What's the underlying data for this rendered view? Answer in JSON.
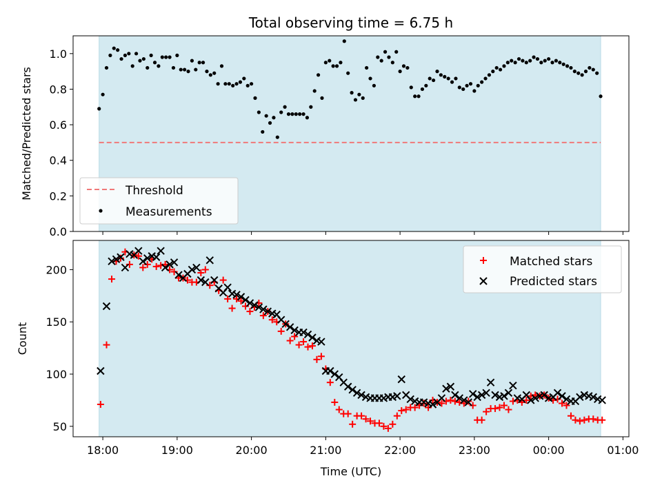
{
  "chart_data": [
    {
      "type": "scatter",
      "title": "Total observing time = 6.75 h",
      "ylabel": "Matched/Predicted stars",
      "ylim": [
        0,
        1.1
      ],
      "yticks": [
        "0.0",
        "0.2",
        "0.4",
        "0.6",
        "0.8",
        "1.0"
      ],
      "xlim_hours": [
        17.6,
        25.08
      ],
      "observing_window_hours": [
        17.95,
        24.7
      ],
      "shade_color": "#d4eaf1",
      "legend_position": "lower-left",
      "threshold": {
        "name": "Threshold",
        "value": 0.5,
        "color": "#f07878"
      },
      "series": [
        {
          "name": "Measurements",
          "color": "#000000",
          "x": [
            17.95,
            18.0,
            18.05,
            18.1,
            18.15,
            18.2,
            18.25,
            18.3,
            18.35,
            18.4,
            18.45,
            18.5,
            18.55,
            18.6,
            18.65,
            18.7,
            18.75,
            18.8,
            18.85,
            18.9,
            18.95,
            19.0,
            19.05,
            19.1,
            19.15,
            19.2,
            19.25,
            19.3,
            19.35,
            19.4,
            19.45,
            19.5,
            19.55,
            19.6,
            19.65,
            19.7,
            19.75,
            19.8,
            19.85,
            19.9,
            19.95,
            20.0,
            20.05,
            20.1,
            20.15,
            20.2,
            20.25,
            20.3,
            20.35,
            20.4,
            20.45,
            20.5,
            20.55,
            20.6,
            20.65,
            20.7,
            20.75,
            20.8,
            20.85,
            20.9,
            20.95,
            21.0,
            21.05,
            21.1,
            21.15,
            21.2,
            21.25,
            21.3,
            21.35,
            21.4,
            21.45,
            21.5,
            21.55,
            21.6,
            21.65,
            21.7,
            21.75,
            21.8,
            21.85,
            21.9,
            21.95,
            22.0,
            22.05,
            22.1,
            22.15,
            22.2,
            22.25,
            22.3,
            22.35,
            22.4,
            22.45,
            22.5,
            22.55,
            22.6,
            22.65,
            22.7,
            22.75,
            22.8,
            22.85,
            22.9,
            22.95,
            23.0,
            23.05,
            23.1,
            23.15,
            23.2,
            23.25,
            23.3,
            23.35,
            23.4,
            23.45,
            23.5,
            23.55,
            23.6,
            23.65,
            23.7,
            23.75,
            23.8,
            23.85,
            23.9,
            23.95,
            24.0,
            24.05,
            24.1,
            24.15,
            24.2,
            24.25,
            24.3,
            24.35,
            24.4,
            24.45,
            24.5,
            24.55,
            24.6,
            24.65,
            24.7
          ],
          "y": [
            0.69,
            0.77,
            0.92,
            0.99,
            1.03,
            1.02,
            0.97,
            0.99,
            1.0,
            0.93,
            1.0,
            0.96,
            0.97,
            0.92,
            0.99,
            0.95,
            0.93,
            0.98,
            0.98,
            0.98,
            0.92,
            0.99,
            0.91,
            0.91,
            0.9,
            0.96,
            0.91,
            0.95,
            0.95,
            0.9,
            0.88,
            0.89,
            0.83,
            0.93,
            0.83,
            0.83,
            0.82,
            0.83,
            0.84,
            0.86,
            0.82,
            0.83,
            0.75,
            0.67,
            0.56,
            0.65,
            0.61,
            0.64,
            0.53,
            0.67,
            0.7,
            0.66,
            0.66,
            0.66,
            0.66,
            0.66,
            0.64,
            0.7,
            0.79,
            0.88,
            0.75,
            0.95,
            0.96,
            0.93,
            0.93,
            0.95,
            1.07,
            0.89,
            0.78,
            0.74,
            0.77,
            0.75,
            0.92,
            0.86,
            0.82,
            0.98,
            0.96,
            1.01,
            0.98,
            0.95,
            1.01,
            0.9,
            0.93,
            0.92,
            0.81,
            0.76,
            0.76,
            0.8,
            0.82,
            0.86,
            0.85,
            0.9,
            0.88,
            0.87,
            0.86,
            0.84,
            0.86,
            0.81,
            0.8,
            0.82,
            0.83,
            0.79,
            0.82,
            0.84,
            0.86,
            0.88,
            0.9,
            0.92,
            0.91,
            0.93,
            0.95,
            0.96,
            0.95,
            0.97,
            0.96,
            0.95,
            0.96,
            0.98,
            0.97,
            0.95,
            0.96,
            0.97,
            0.95,
            0.96,
            0.95,
            0.94,
            0.93,
            0.92,
            0.9,
            0.89,
            0.88,
            0.9,
            0.92,
            0.91,
            0.89,
            0.76
          ]
        }
      ]
    },
    {
      "type": "scatter",
      "xlabel": "Time (UTC)",
      "ylabel": "Count",
      "ylim": [
        40,
        228
      ],
      "yticks": [
        "50",
        "100",
        "150",
        "200"
      ],
      "xticks": [
        "18:00",
        "19:00",
        "20:00",
        "21:00",
        "22:00",
        "23:00",
        "00:00",
        "01:00"
      ],
      "xlim_hours": [
        17.6,
        25.08
      ],
      "observing_window_hours": [
        17.95,
        24.7
      ],
      "shade_color": "#d4eaf1",
      "legend_position": "upper-right",
      "series": [
        {
          "name": "Matched stars",
          "marker": "plus",
          "color": "#ff0000",
          "x": [
            17.97,
            18.05,
            18.12,
            18.18,
            18.24,
            18.3,
            18.36,
            18.42,
            18.48,
            18.54,
            18.6,
            18.66,
            18.72,
            18.78,
            18.84,
            18.9,
            18.96,
            19.02,
            19.08,
            19.14,
            19.2,
            19.26,
            19.32,
            19.38,
            19.44,
            19.5,
            19.56,
            19.62,
            19.68,
            19.74,
            19.8,
            19.86,
            19.92,
            19.98,
            20.04,
            20.1,
            20.16,
            20.22,
            20.28,
            20.34,
            20.4,
            20.46,
            20.52,
            20.58,
            20.64,
            20.7,
            20.76,
            20.82,
            20.88,
            20.94,
            21.0,
            21.06,
            21.12,
            21.18,
            21.24,
            21.3,
            21.36,
            21.42,
            21.48,
            21.54,
            21.6,
            21.66,
            21.72,
            21.78,
            21.84,
            21.9,
            21.96,
            22.02,
            22.08,
            22.14,
            22.2,
            22.26,
            22.32,
            22.38,
            22.44,
            22.5,
            22.56,
            22.62,
            22.68,
            22.74,
            22.8,
            22.86,
            22.92,
            22.98,
            23.04,
            23.1,
            23.16,
            23.22,
            23.28,
            23.34,
            23.4,
            23.46,
            23.52,
            23.58,
            23.64,
            23.7,
            23.76,
            23.82,
            23.88,
            23.94,
            24.0,
            24.06,
            24.12,
            24.18,
            24.24,
            24.3,
            24.36,
            24.42,
            24.48,
            24.54,
            24.6,
            24.66,
            24.72
          ],
          "y": [
            71,
            128,
            191,
            208,
            211,
            217,
            205,
            214,
            213,
            202,
            205,
            210,
            203,
            204,
            205,
            200,
            198,
            192,
            192,
            190,
            188,
            188,
            197,
            200,
            185,
            188,
            180,
            190,
            172,
            163,
            172,
            170,
            165,
            160,
            164,
            168,
            156,
            160,
            152,
            150,
            141,
            148,
            132,
            136,
            128,
            131,
            126,
            127,
            114,
            117,
            105,
            92,
            73,
            66,
            62,
            62,
            52,
            60,
            60,
            57,
            55,
            53,
            53,
            50,
            48,
            52,
            60,
            65,
            66,
            68,
            68,
            70,
            72,
            68,
            75,
            73,
            72,
            74,
            75,
            74,
            73,
            72,
            74,
            70,
            56,
            56,
            64,
            67,
            67,
            68,
            70,
            66,
            74,
            75,
            73,
            75,
            79,
            80,
            79,
            80,
            77,
            75,
            76,
            72,
            70,
            60,
            56,
            55,
            56,
            57,
            57,
            56,
            56
          ],
          "note": null
        },
        {
          "name": "Predicted stars",
          "marker": "x",
          "color": "#000000",
          "x": [
            17.97,
            18.05,
            18.12,
            18.18,
            18.24,
            18.3,
            18.36,
            18.42,
            18.48,
            18.54,
            18.6,
            18.66,
            18.72,
            18.78,
            18.84,
            18.9,
            18.96,
            19.02,
            19.08,
            19.14,
            19.2,
            19.26,
            19.32,
            19.38,
            19.44,
            19.5,
            19.56,
            19.62,
            19.68,
            19.74,
            19.8,
            19.86,
            19.92,
            19.98,
            20.04,
            20.1,
            20.16,
            20.22,
            20.28,
            20.34,
            20.4,
            20.46,
            20.52,
            20.58,
            20.64,
            20.7,
            20.76,
            20.82,
            20.88,
            20.94,
            21.0,
            21.06,
            21.12,
            21.18,
            21.24,
            21.3,
            21.36,
            21.42,
            21.48,
            21.54,
            21.6,
            21.66,
            21.72,
            21.78,
            21.84,
            21.9,
            21.96,
            22.02,
            22.08,
            22.14,
            22.2,
            22.26,
            22.32,
            22.38,
            22.44,
            22.5,
            22.56,
            22.62,
            22.68,
            22.74,
            22.8,
            22.86,
            22.92,
            22.98,
            23.04,
            23.1,
            23.16,
            23.22,
            23.28,
            23.34,
            23.4,
            23.46,
            23.52,
            23.58,
            23.64,
            23.7,
            23.76,
            23.82,
            23.88,
            23.94,
            24.0,
            24.06,
            24.12,
            24.18,
            24.24,
            24.3,
            24.36,
            24.42,
            24.48,
            24.54,
            24.6,
            24.66,
            24.72
          ],
          "y": [
            103,
            165,
            208,
            210,
            212,
            202,
            215,
            214,
            218,
            208,
            211,
            213,
            212,
            218,
            202,
            205,
            207,
            195,
            192,
            196,
            200,
            202,
            190,
            188,
            209,
            190,
            182,
            178,
            183,
            177,
            176,
            174,
            171,
            168,
            166,
            164,
            162,
            160,
            158,
            157,
            152,
            148,
            145,
            142,
            140,
            140,
            138,
            135,
            132,
            131,
            103,
            103,
            100,
            97,
            92,
            88,
            85,
            82,
            80,
            78,
            77,
            77,
            77,
            77,
            78,
            78,
            79,
            95,
            80,
            76,
            74,
            73,
            73,
            72,
            71,
            73,
            77,
            86,
            88,
            80,
            77,
            75,
            73,
            81,
            78,
            80,
            82,
            92,
            80,
            78,
            79,
            82,
            89,
            77,
            76,
            80,
            75,
            77,
            79,
            80,
            77,
            78,
            82,
            79,
            76,
            74,
            74,
            78,
            80,
            79,
            78,
            76,
            75
          ],
          "note": null
        }
      ]
    }
  ]
}
